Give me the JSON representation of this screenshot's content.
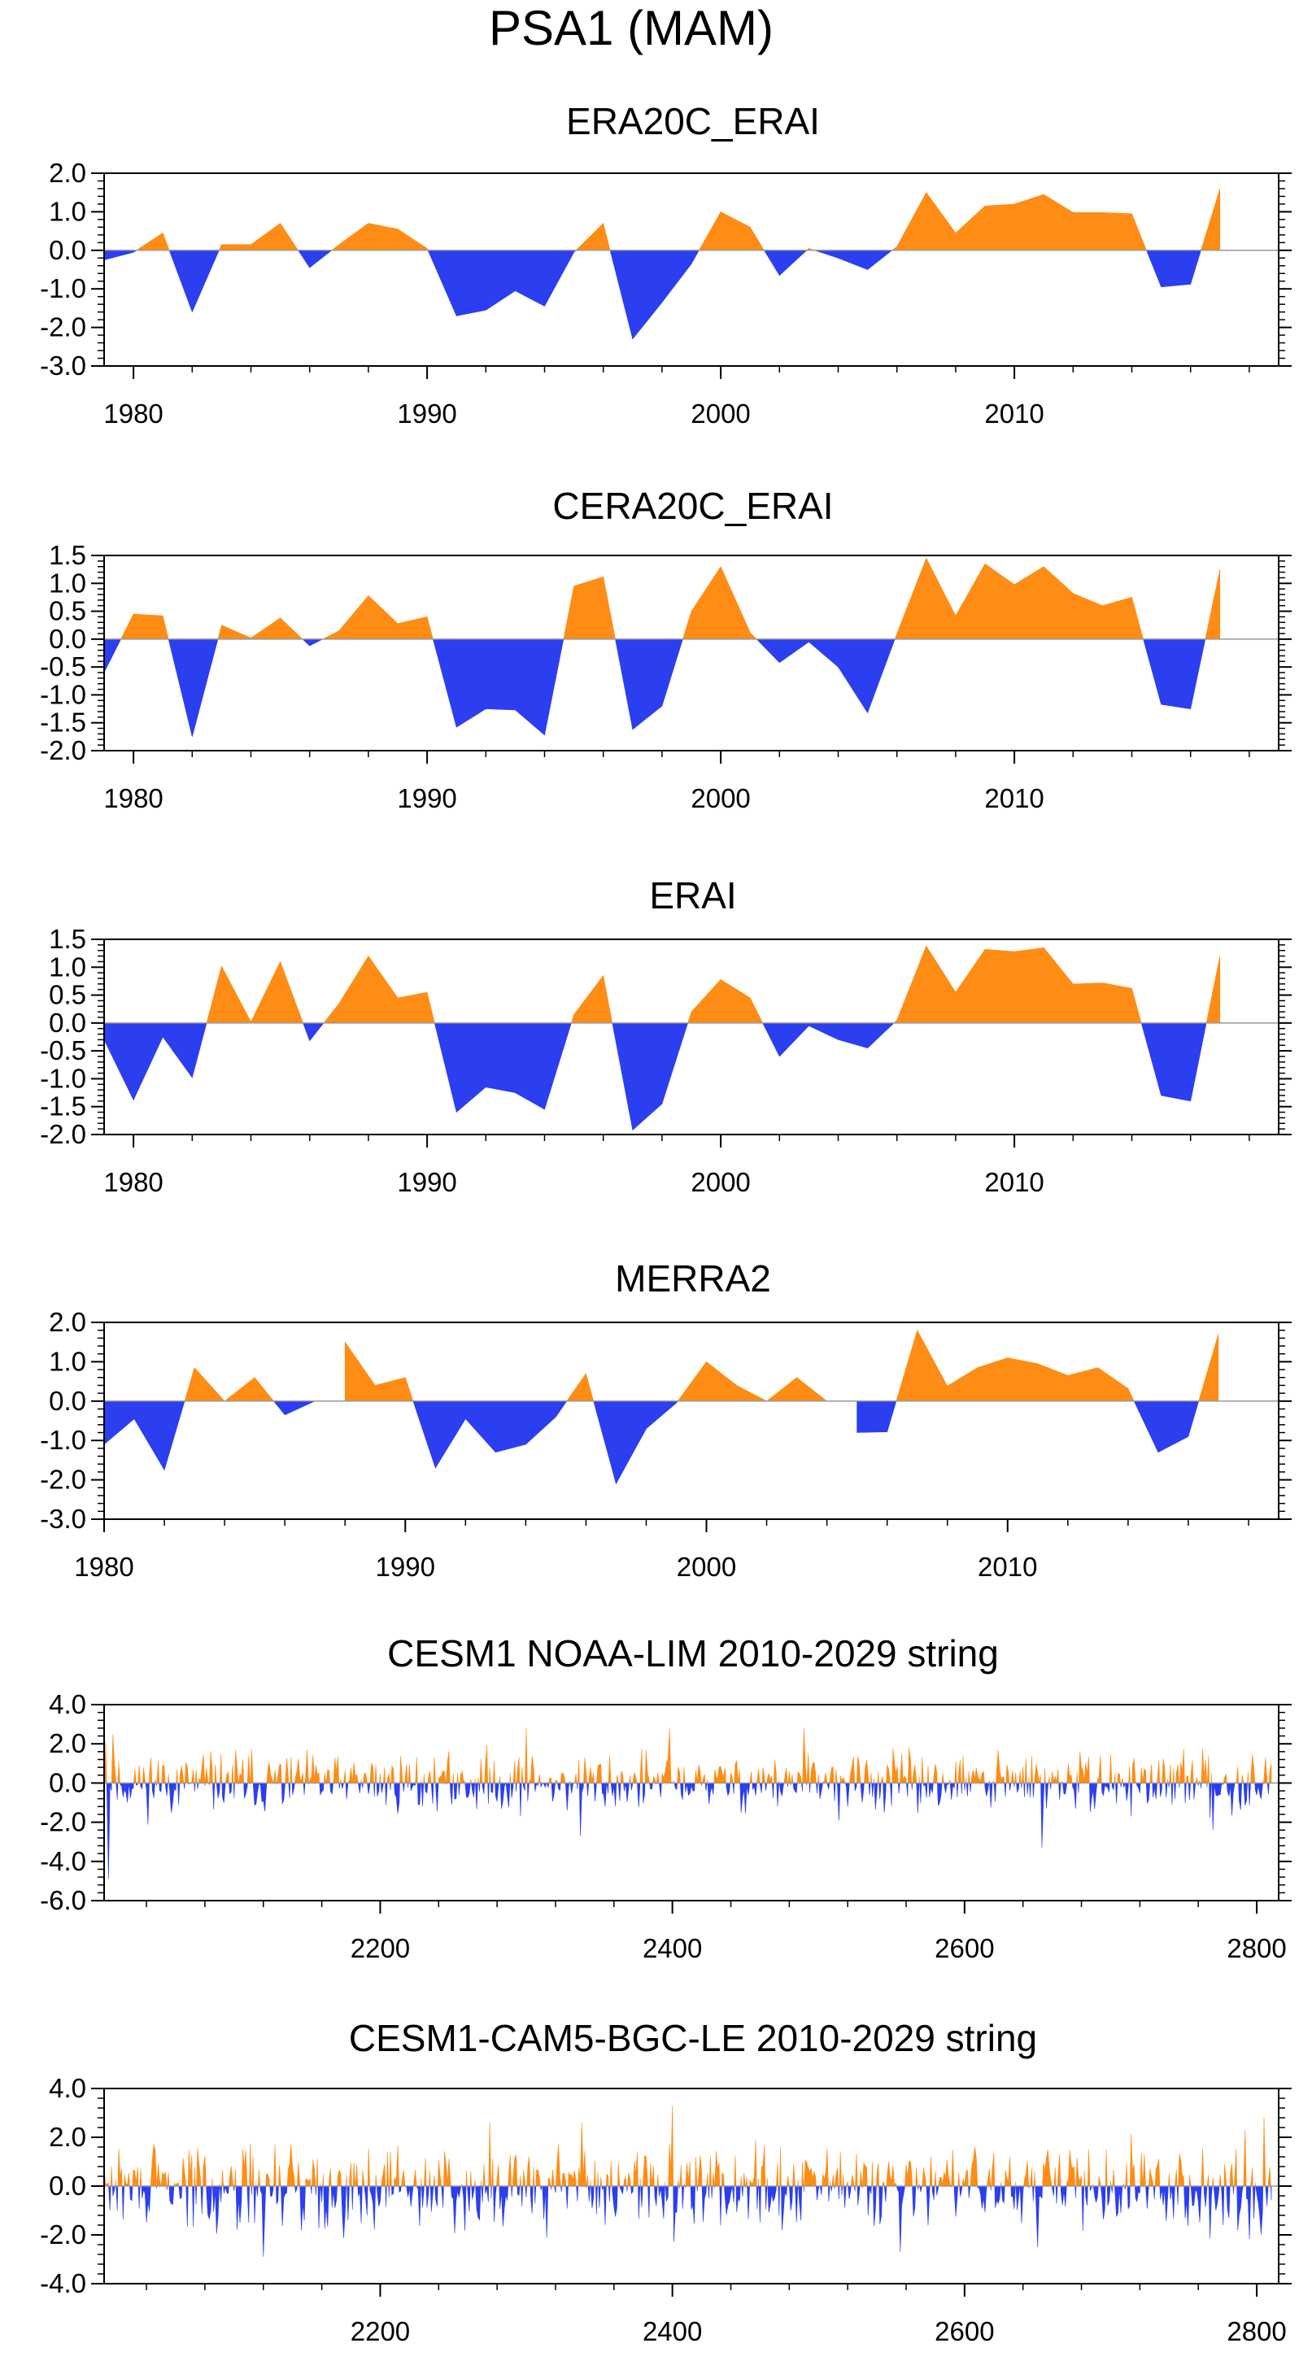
{
  "figure_title": "PSA1 (MAM)",
  "colors": {
    "positive": "#ff8c14",
    "negative": "#2b3ef0",
    "axis": "#000000"
  },
  "chart_data": [
    {
      "type": "area",
      "title": "ERA20C_ERAI",
      "xlim": [
        1979,
        2019
      ],
      "ylim": [
        -3.0,
        2.0
      ],
      "yticks": [
        "2.0",
        "1.0",
        "0.0",
        "-1.0",
        "-2.0",
        "-3.0"
      ],
      "xticks": [
        "1980",
        "1990",
        "2000",
        "2010"
      ],
      "x": [
        1979,
        1980,
        1981,
        1982,
        1983,
        1984,
        1985,
        1986,
        1987,
        1988,
        1989,
        1990,
        1991,
        1992,
        1993,
        1994,
        1995,
        1996,
        1997,
        1998,
        1999,
        2000,
        2001,
        2002,
        2003,
        2004,
        2005,
        2006,
        2007,
        2008,
        2009,
        2010,
        2011,
        2012,
        2013,
        2014,
        2015,
        2016,
        2017
      ],
      "values": [
        -0.25,
        -0.05,
        0.45,
        -1.6,
        0.15,
        0.15,
        0.7,
        -0.45,
        0.15,
        0.7,
        0.55,
        0.05,
        -1.7,
        -1.55,
        -1.05,
        -1.45,
        -0.05,
        0.7,
        -2.3,
        -1.35,
        -0.35,
        1.0,
        0.6,
        -0.65,
        0.05,
        -0.2,
        -0.5,
        0.1,
        1.5,
        0.45,
        1.15,
        1.2,
        1.45,
        0.98,
        0.98,
        0.95,
        -0.95,
        -0.88,
        1.6
      ]
    },
    {
      "type": "area",
      "title": "CERA20C_ERAI",
      "xlim": [
        1979,
        2019
      ],
      "ylim": [
        -2.0,
        1.5
      ],
      "yticks": [
        "1.5",
        "1.0",
        "0.5",
        "0.0",
        "-0.5",
        "-1.0",
        "-1.5",
        "-2.0"
      ],
      "xticks": [
        "1980",
        "1990",
        "2000",
        "2010"
      ],
      "x": [
        1979,
        1980,
        1981,
        1982,
        1983,
        1984,
        1985,
        1986,
        1987,
        1988,
        1989,
        1990,
        1991,
        1992,
        1993,
        1994,
        1995,
        1996,
        1997,
        1998,
        1999,
        2000,
        2001,
        2002,
        2003,
        2004,
        2005,
        2006,
        2007,
        2008,
        2009,
        2010,
        2011,
        2012,
        2013,
        2014,
        2015,
        2016,
        2017
      ],
      "values": [
        -0.6,
        0.45,
        0.42,
        -1.75,
        0.25,
        0.02,
        0.38,
        -0.12,
        0.15,
        0.78,
        0.28,
        0.4,
        -1.58,
        -1.25,
        -1.27,
        -1.72,
        0.95,
        1.12,
        -1.62,
        -1.2,
        0.5,
        1.3,
        0.12,
        -0.42,
        -0.05,
        -0.5,
        -1.32,
        0.1,
        1.45,
        0.42,
        1.35,
        0.98,
        1.3,
        0.82,
        0.6,
        0.75,
        -1.17,
        -1.25,
        1.25
      ]
    },
    {
      "type": "area",
      "title": "ERAI",
      "xlim": [
        1979,
        2019
      ],
      "ylim": [
        -2.0,
        1.5
      ],
      "yticks": [
        "1.5",
        "1.0",
        "0.5",
        "0.0",
        "-0.5",
        "-1.0",
        "-1.5",
        "-2.0"
      ],
      "xticks": [
        "1980",
        "1990",
        "2000",
        "2010"
      ],
      "x": [
        1979,
        1980,
        1981,
        1982,
        1983,
        1984,
        1985,
        1986,
        1987,
        1988,
        1989,
        1990,
        1991,
        1992,
        1993,
        1994,
        1995,
        1996,
        1997,
        1998,
        1999,
        2000,
        2001,
        2002,
        2003,
        2004,
        2005,
        2006,
        2007,
        2008,
        2009,
        2010,
        2011,
        2012,
        2013,
        2014,
        2015,
        2016,
        2017
      ],
      "values": [
        -0.3,
        -1.38,
        -0.25,
        -0.98,
        1.02,
        0.02,
        1.1,
        -0.32,
        0.35,
        1.2,
        0.45,
        0.55,
        -1.6,
        -1.15,
        -1.25,
        -1.55,
        0.15,
        0.85,
        -1.92,
        -1.45,
        0.2,
        0.78,
        0.45,
        -0.6,
        -0.05,
        -0.3,
        -0.45,
        0.05,
        1.38,
        0.55,
        1.32,
        1.28,
        1.35,
        0.7,
        0.72,
        0.62,
        -1.3,
        -1.4,
        1.2
      ]
    },
    {
      "type": "area",
      "title": "MERRA2",
      "xlim": [
        1980,
        2019
      ],
      "ylim": [
        -3.0,
        2.0
      ],
      "yticks": [
        "2.0",
        "1.0",
        "0.0",
        "-1.0",
        "-2.0",
        "-3.0"
      ],
      "xticks": [
        "1980",
        "1990",
        "2000",
        "2010"
      ],
      "x": [
        1980,
        1981,
        1982,
        1983,
        1984,
        1985,
        1986,
        1987,
        1988,
        1989,
        1990,
        1991,
        1992,
        1993,
        1994,
        1995,
        1996,
        1997,
        1998,
        1999,
        2000,
        2001,
        2002,
        2003,
        2004,
        2005,
        2006,
        2007,
        2008,
        2009,
        2010,
        2011,
        2012,
        2013,
        2014,
        2015,
        2016,
        2017
      ],
      "values": [
        -1.1,
        -0.45,
        -1.75,
        0.85,
        0.0,
        0.6,
        -0.35,
        0.0,
        1.5,
        0.4,
        0.6,
        -1.7,
        -0.45,
        -1.3,
        -1.1,
        -0.4,
        0.7,
        -2.1,
        -0.7,
        -0.05,
        1.0,
        0.4,
        0.0,
        0.6,
        0.0,
        -0.8,
        -0.78,
        1.8,
        0.38,
        0.85,
        1.1,
        0.95,
        0.65,
        0.85,
        0.32,
        -1.3,
        -0.9,
        1.7
      ]
    },
    {
      "type": "area",
      "title": "CESM1 NOAA-LIM 2010-2029 string",
      "xlim": [
        2011,
        2815
      ],
      "ylim": [
        -6.0,
        4.0
      ],
      "yticks": [
        "4.0",
        "2.0",
        "0.0",
        "-2.0",
        "-4.0",
        "-6.0"
      ],
      "xticks": [
        "2200",
        "2400",
        "2600",
        "2800"
      ],
      "x_start": 2011,
      "x_end": 2810,
      "n_points": 800,
      "seed": 11,
      "scale_pos": 0.75,
      "scale_neg": 0.7,
      "extremes": [
        [
          2014,
          -4.9
        ],
        [
          2012,
          2.1
        ],
        [
          2017,
          2.5
        ],
        [
          2300,
          2.8
        ],
        [
          2337,
          -2.7
        ],
        [
          2398,
          2.8
        ],
        [
          2490,
          2.8
        ],
        [
          2653,
          -3.3
        ],
        [
          2770,
          -2.4
        ]
      ]
    },
    {
      "type": "area",
      "title": "CESM1-CAM5-BGC-LE 2010-2029 string",
      "xlim": [
        2011,
        2815
      ],
      "ylim": [
        -4.0,
        4.0
      ],
      "yticks": [
        "4.0",
        "2.0",
        "0.0",
        "-2.0",
        "-4.0"
      ],
      "xticks": [
        "2200",
        "2400",
        "2600",
        "2800"
      ],
      "x_start": 2011,
      "x_end": 2810,
      "n_points": 800,
      "seed": 29,
      "scale_pos": 0.8,
      "scale_neg": 0.85,
      "extremes": [
        [
          2400,
          3.3
        ],
        [
          2120,
          -2.9
        ],
        [
          2275,
          2.6
        ],
        [
          2338,
          2.6
        ],
        [
          2556,
          -2.7
        ],
        [
          2650,
          -2.5
        ],
        [
          2805,
          2.8
        ]
      ]
    }
  ]
}
